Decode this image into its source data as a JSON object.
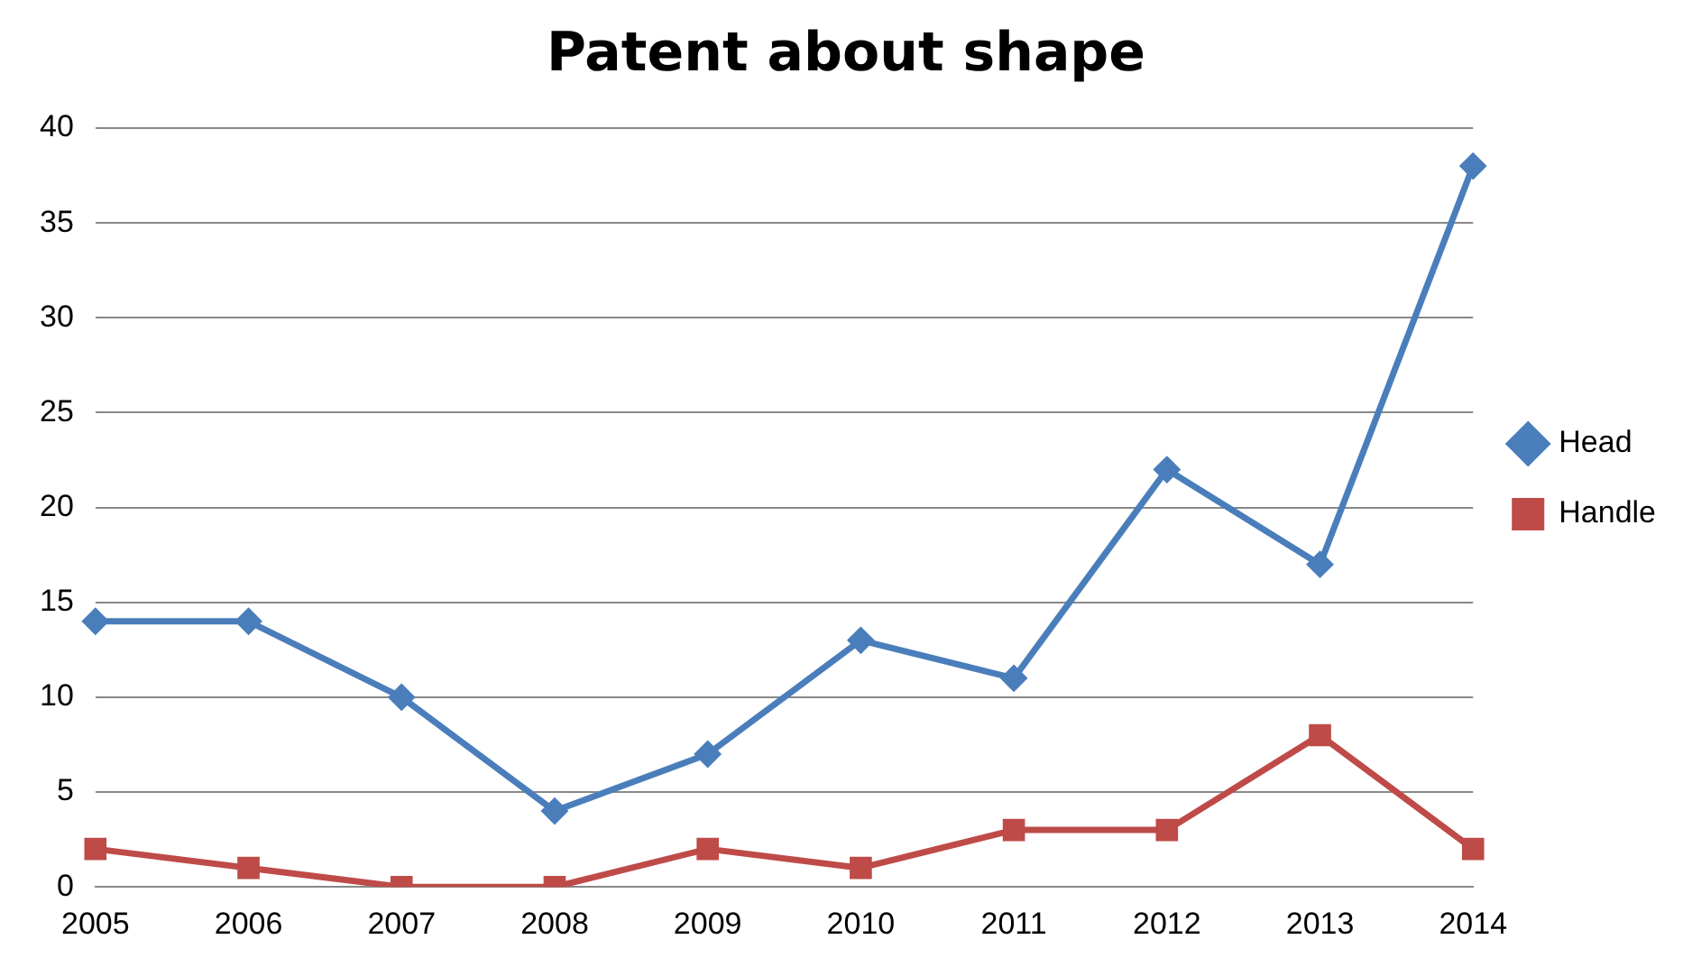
{
  "chart_data": {
    "type": "line",
    "title": "Patent about shape",
    "categories": [
      "2005",
      "2006",
      "2007",
      "2008",
      "2009",
      "2010",
      "2011",
      "2012",
      "2013",
      "2014"
    ],
    "series": [
      {
        "name": "Head",
        "color": "#4a7ebb",
        "marker": "diamond",
        "values": [
          14,
          14,
          10,
          4,
          7,
          13,
          11,
          22,
          17,
          38
        ]
      },
      {
        "name": "Handle",
        "color": "#be4b48",
        "marker": "square",
        "values": [
          2,
          1,
          0,
          0,
          2,
          1,
          3,
          3,
          8,
          2
        ]
      }
    ],
    "ylim": [
      0,
      40
    ],
    "yticks": [
      0,
      5,
      10,
      15,
      20,
      25,
      30,
      35,
      40
    ],
    "grid": "y",
    "legend": "right"
  }
}
